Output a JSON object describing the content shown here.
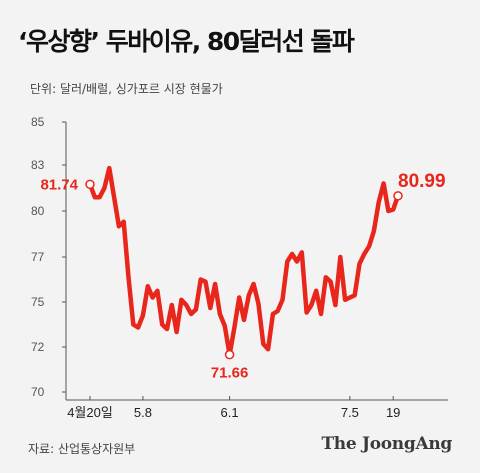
{
  "header": {
    "title": "‘우상향’ 두바이유, 80달러선 돌파",
    "unit": "단위: 달러/배럴, 싱가포르 시장 현물가"
  },
  "footer": {
    "source": "자료: 산업통상자원부",
    "brand": "The JoongAng"
  },
  "colors": {
    "line": "#e8261c",
    "axis": "#555555",
    "background": "#f3f3f3"
  },
  "chart_data": {
    "type": "line",
    "title": "‘우상향’ 두바이유, 80달러선 돌파",
    "ylim": [
      70,
      85
    ],
    "y_ticks": [
      85,
      83,
      80,
      77,
      75,
      72,
      70
    ],
    "grid": false,
    "x_tick_labels": [
      {
        "index": 0,
        "label": "4월20일"
      },
      {
        "index": 11,
        "label": "5.8"
      },
      {
        "index": 29,
        "label": "6.1"
      },
      {
        "index": 54,
        "label": "7.5"
      },
      {
        "index": 63,
        "label": "19"
      }
    ],
    "series": [
      {
        "values": [
          81.74,
          80.9,
          80.9,
          81.5,
          82.8,
          80.9,
          79.0,
          79.3,
          76.1,
          73.5,
          73.3,
          74.1,
          75.7,
          75.2,
          75.5,
          73.5,
          73.2,
          74.8,
          73.0,
          75.1,
          74.8,
          74.2,
          74.5,
          76.0,
          75.9,
          74.6,
          75.8,
          74.2,
          73.4,
          71.66,
          73.3,
          75.2,
          73.8,
          75.3,
          75.8,
          74.9,
          72.2,
          71.9,
          74.2,
          74.4,
          75.1,
          76.8,
          77.2,
          76.8,
          77.3,
          74.3,
          74.8,
          75.5,
          74.2,
          76.1,
          75.9,
          74.8,
          77.0,
          75.1,
          75.2,
          75.3,
          76.7,
          77.2,
          77.7,
          78.7,
          80.6,
          81.8,
          80.0,
          80.1,
          80.99
        ]
      }
    ],
    "annotations": [
      {
        "index": 0,
        "value": 81.74,
        "text": "81.74"
      },
      {
        "index": 29,
        "value": 71.66,
        "text": "71.66"
      },
      {
        "index": 64,
        "value": 80.99,
        "text": "80.99"
      }
    ]
  }
}
